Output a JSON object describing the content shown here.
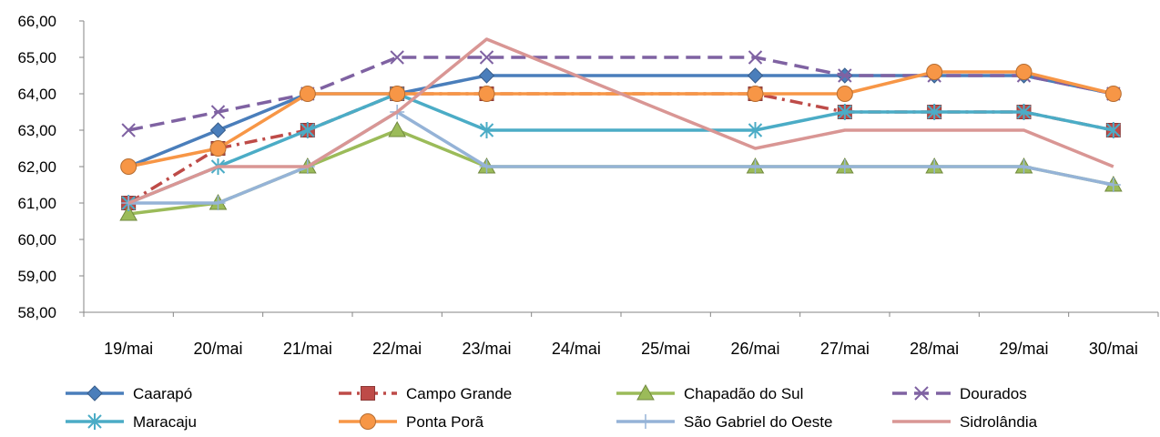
{
  "chart_data": {
    "type": "line",
    "title": "",
    "xlabel": "",
    "ylabel": "",
    "categories": [
      "19/mai",
      "20/mai",
      "21/mai",
      "22/mai",
      "23/mai",
      "24/mai",
      "25/mai",
      "26/mai",
      "27/mai",
      "28/mai",
      "29/mai",
      "30/mai"
    ],
    "ylim": [
      58,
      66
    ],
    "y_ticks": [
      "58,00",
      "59,00",
      "60,00",
      "61,00",
      "62,00",
      "63,00",
      "64,00",
      "65,00",
      "66,00"
    ],
    "grid": false,
    "legend_position": "bottom",
    "series": [
      {
        "name": "Caarapó",
        "color": "#4a7ebb",
        "dash": "solid",
        "marker": "diamond",
        "values": [
          62,
          63,
          64,
          64,
          64.5,
          null,
          null,
          64.5,
          64.5,
          64.5,
          64.5,
          64
        ]
      },
      {
        "name": "Campo Grande",
        "color": "#be4b48",
        "dash": "dash-dot",
        "marker": "square",
        "values": [
          61,
          62.5,
          63,
          64,
          64,
          null,
          null,
          64,
          63.5,
          63.5,
          63.5,
          63
        ]
      },
      {
        "name": "Chapadão do Sul",
        "color": "#9bbb59",
        "dash": "solid",
        "marker": "triangle",
        "values": [
          60.7,
          61,
          62,
          63,
          62,
          null,
          null,
          62,
          62,
          62,
          62,
          61.5
        ]
      },
      {
        "name": "Dourados",
        "color": "#7f62a2",
        "dash": "long-dash",
        "marker": "x",
        "values": [
          63,
          63.5,
          64,
          65,
          65,
          null,
          null,
          65,
          64.5,
          64.5,
          64.5,
          64
        ]
      },
      {
        "name": "Maracaju",
        "color": "#4bacc6",
        "dash": "solid",
        "marker": "asterisk",
        "values": [
          61,
          62,
          63,
          64,
          63,
          null,
          null,
          63,
          63.5,
          63.5,
          63.5,
          63
        ]
      },
      {
        "name": "Ponta Porã",
        "color": "#f79646",
        "dash": "solid",
        "marker": "circle",
        "values": [
          62,
          62.5,
          64,
          64,
          64,
          null,
          null,
          64,
          64,
          64.6,
          64.6,
          64
        ]
      },
      {
        "name": "São Gabriel do Oeste",
        "color": "#95b3d7",
        "dash": "solid",
        "marker": "plus",
        "values": [
          61,
          61,
          62,
          63.5,
          62,
          null,
          null,
          62,
          62,
          62,
          62,
          61.5
        ]
      },
      {
        "name": "Sidrolândia",
        "color": "#d99694",
        "dash": "solid",
        "marker": "none",
        "values": [
          61,
          62,
          62,
          63.5,
          65.5,
          null,
          null,
          62.5,
          63,
          63,
          63,
          62
        ]
      }
    ]
  }
}
